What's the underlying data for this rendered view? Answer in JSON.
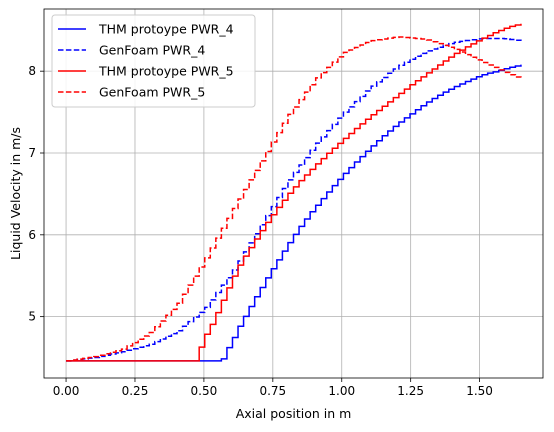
{
  "chart_data": {
    "type": "line",
    "xlabel": "Axial position in m",
    "ylabel": "Liquid Velocity in m/s",
    "xlim": [
      -0.08,
      1.73
    ],
    "ylim": [
      4.25,
      8.76
    ],
    "xticks": [
      "0.00",
      "0.25",
      "0.50",
      "0.75",
      "1.00",
      "1.25",
      "1.50"
    ],
    "yticks": [
      "5",
      "6",
      "7",
      "8"
    ],
    "grid": true,
    "legend_position": "top-left",
    "series": [
      {
        "name": "THM protoype PWR_4",
        "color": "#0000ff",
        "style": "solid",
        "step": true,
        "points": [
          [
            0.0,
            4.46
          ],
          [
            0.56,
            4.46
          ],
          [
            0.58,
            4.6
          ],
          [
            0.6,
            4.72
          ],
          [
            0.62,
            4.86
          ],
          [
            0.64,
            4.98
          ],
          [
            0.66,
            5.1
          ],
          [
            0.68,
            5.22
          ],
          [
            0.7,
            5.33
          ],
          [
            0.72,
            5.45
          ],
          [
            0.74,
            5.56
          ],
          [
            0.76,
            5.67
          ],
          [
            0.8,
            5.88
          ],
          [
            0.84,
            6.08
          ],
          [
            0.88,
            6.26
          ],
          [
            0.92,
            6.42
          ],
          [
            0.96,
            6.58
          ],
          [
            1.0,
            6.73
          ],
          [
            1.04,
            6.87
          ],
          [
            1.08,
            7.0
          ],
          [
            1.12,
            7.13
          ],
          [
            1.16,
            7.25
          ],
          [
            1.2,
            7.36
          ],
          [
            1.24,
            7.46
          ],
          [
            1.28,
            7.56
          ],
          [
            1.32,
            7.65
          ],
          [
            1.36,
            7.73
          ],
          [
            1.4,
            7.8
          ],
          [
            1.44,
            7.86
          ],
          [
            1.48,
            7.92
          ],
          [
            1.52,
            7.97
          ],
          [
            1.56,
            8.0
          ],
          [
            1.6,
            8.04
          ],
          [
            1.65,
            8.08
          ]
        ]
      },
      {
        "name": "GenFoam PWR_4",
        "color": "#0000ff",
        "style": "dashed",
        "step": true,
        "points": [
          [
            0.0,
            4.46
          ],
          [
            0.1,
            4.5
          ],
          [
            0.2,
            4.57
          ],
          [
            0.3,
            4.66
          ],
          [
            0.4,
            4.82
          ],
          [
            0.5,
            5.1
          ],
          [
            0.6,
            5.55
          ],
          [
            0.7,
            6.1
          ],
          [
            0.8,
            6.65
          ],
          [
            0.9,
            7.1
          ],
          [
            1.0,
            7.48
          ],
          [
            1.1,
            7.8
          ],
          [
            1.2,
            8.06
          ],
          [
            1.3,
            8.24
          ],
          [
            1.4,
            8.35
          ],
          [
            1.5,
            8.4
          ],
          [
            1.58,
            8.4
          ],
          [
            1.65,
            8.37
          ]
        ]
      },
      {
        "name": "THM protoype PWR_5",
        "color": "#ff0000",
        "style": "solid",
        "step": true,
        "points": [
          [
            0.0,
            4.46
          ],
          [
            0.47,
            4.46
          ],
          [
            0.49,
            4.72
          ],
          [
            0.51,
            4.82
          ],
          [
            0.53,
            4.95
          ],
          [
            0.55,
            5.1
          ],
          [
            0.57,
            5.25
          ],
          [
            0.59,
            5.4
          ],
          [
            0.61,
            5.54
          ],
          [
            0.63,
            5.67
          ],
          [
            0.65,
            5.77
          ],
          [
            0.69,
            5.98
          ],
          [
            0.73,
            6.18
          ],
          [
            0.77,
            6.36
          ],
          [
            0.81,
            6.53
          ],
          [
            0.85,
            6.68
          ],
          [
            0.9,
            6.85
          ],
          [
            0.95,
            7.01
          ],
          [
            1.0,
            7.16
          ],
          [
            1.05,
            7.31
          ],
          [
            1.1,
            7.45
          ],
          [
            1.15,
            7.58
          ],
          [
            1.2,
            7.71
          ],
          [
            1.25,
            7.84
          ],
          [
            1.3,
            7.96
          ],
          [
            1.35,
            8.08
          ],
          [
            1.4,
            8.2
          ],
          [
            1.45,
            8.3
          ],
          [
            1.5,
            8.39
          ],
          [
            1.55,
            8.47
          ],
          [
            1.6,
            8.54
          ],
          [
            1.65,
            8.58
          ]
        ]
      },
      {
        "name": "GenFoam PWR_5",
        "color": "#ff0000",
        "style": "dashed",
        "step": true,
        "points": [
          [
            0.0,
            4.46
          ],
          [
            0.1,
            4.51
          ],
          [
            0.2,
            4.6
          ],
          [
            0.3,
            4.8
          ],
          [
            0.4,
            5.15
          ],
          [
            0.5,
            5.7
          ],
          [
            0.6,
            6.3
          ],
          [
            0.7,
            6.88
          ],
          [
            0.8,
            7.45
          ],
          [
            0.9,
            7.9
          ],
          [
            1.0,
            8.22
          ],
          [
            1.1,
            8.37
          ],
          [
            1.2,
            8.42
          ],
          [
            1.3,
            8.39
          ],
          [
            1.4,
            8.28
          ],
          [
            1.5,
            8.12
          ],
          [
            1.6,
            7.97
          ],
          [
            1.65,
            7.9
          ]
        ]
      }
    ]
  }
}
